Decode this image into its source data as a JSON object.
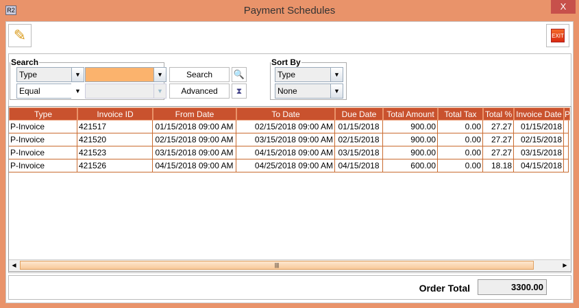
{
  "window": {
    "title": "Payment Schedules",
    "close_label": "X",
    "app_icon": "R2"
  },
  "toolbar": {
    "edit_icon": "pencil-icon",
    "exit_label": "EXIT"
  },
  "search": {
    "legend": "Search",
    "field": "Type",
    "value": "",
    "operator": "Equal",
    "value2": "",
    "search_label": "Search",
    "advanced_label": "Advanced"
  },
  "sort": {
    "legend": "Sort By",
    "primary": "Type",
    "secondary": "None"
  },
  "table": {
    "columns": [
      "Type",
      "Invoice ID",
      "From Date",
      "To Date",
      "Due Date",
      "Total Amount",
      "Total Tax",
      "Total %",
      "Invoice Date",
      "P"
    ],
    "rows": [
      [
        "P-Invoice",
        "421517",
        "01/15/2018 09:00 AM",
        "02/15/2018 09:00 AM",
        "01/15/2018",
        "900.00",
        "0.00",
        "27.27",
        "01/15/2018"
      ],
      [
        "P-Invoice",
        "421520",
        "02/15/2018 09:00 AM",
        "03/15/2018 09:00 AM",
        "02/15/2018",
        "900.00",
        "0.00",
        "27.27",
        "02/15/2018"
      ],
      [
        "P-Invoice",
        "421523",
        "03/15/2018 09:00 AM",
        "04/15/2018 09:00 AM",
        "03/15/2018",
        "900.00",
        "0.00",
        "27.27",
        "03/15/2018"
      ],
      [
        "P-Invoice",
        "421526",
        "04/15/2018 09:00 AM",
        "04/25/2018 09:00 AM",
        "04/15/2018",
        "600.00",
        "0.00",
        "18.18",
        "04/15/2018"
      ]
    ]
  },
  "footer": {
    "label": "Order Total",
    "value": "3300.00"
  },
  "colors": {
    "titlebar": "#E9936A",
    "header": "#C9522E",
    "accent_input": "#FBB36D"
  }
}
